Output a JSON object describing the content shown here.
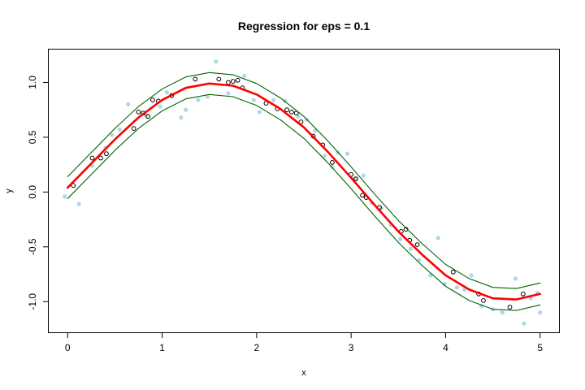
{
  "chart_data": {
    "type": "scatter",
    "title": "Regression for eps = 0.1",
    "xlabel": "x",
    "ylabel": "y",
    "xlim": [
      -0.2,
      5.2
    ],
    "ylim": [
      -1.28,
      1.3
    ],
    "x_ticks": [
      0,
      1,
      2,
      3,
      4,
      5
    ],
    "y_ticks": [
      -1.0,
      -0.5,
      0.0,
      0.5,
      1.0
    ],
    "x_tick_labels": [
      "0",
      "1",
      "2",
      "3",
      "4",
      "5"
    ],
    "y_tick_labels": [
      "-1.0",
      "-0.5",
      "0.0",
      "0.5",
      "1.0"
    ],
    "grid": false,
    "colors": {
      "data_points": "#add8e6",
      "support_vectors": "#000000",
      "fit_line": "#ff0000",
      "tube_lines": "#006400"
    },
    "series": [
      {
        "kind": "points",
        "marker": "filled-circle",
        "color": "#add8e6",
        "points": [
          [
            -0.03,
            -0.04
          ],
          [
            0.12,
            -0.11
          ],
          [
            0.26,
            0.24
          ],
          [
            0.4,
            0.4
          ],
          [
            0.47,
            0.52
          ],
          [
            0.55,
            0.57
          ],
          [
            0.64,
            0.8
          ],
          [
            0.83,
            0.7
          ],
          [
            0.98,
            0.78
          ],
          [
            1.05,
            0.91
          ],
          [
            1.2,
            0.68
          ],
          [
            1.25,
            0.75
          ],
          [
            1.38,
            0.84
          ],
          [
            1.48,
            0.87
          ],
          [
            1.57,
            1.19
          ],
          [
            1.7,
            0.9
          ],
          [
            1.87,
            1.06
          ],
          [
            1.97,
            0.84
          ],
          [
            2.03,
            0.73
          ],
          [
            2.18,
            0.84
          ],
          [
            2.3,
            0.83
          ],
          [
            2.44,
            0.69
          ],
          [
            2.53,
            0.66
          ],
          [
            2.62,
            0.56
          ],
          [
            2.72,
            0.33
          ],
          [
            2.8,
            0.23
          ],
          [
            2.86,
            0.36
          ],
          [
            2.96,
            0.35
          ],
          [
            3.04,
            0.12
          ],
          [
            3.13,
            0.15
          ],
          [
            3.22,
            -0.1
          ],
          [
            3.32,
            -0.15
          ],
          [
            3.42,
            -0.3
          ],
          [
            3.52,
            -0.43
          ],
          [
            3.63,
            -0.52
          ],
          [
            3.72,
            -0.62
          ],
          [
            3.84,
            -0.76
          ],
          [
            3.92,
            -0.42
          ],
          [
            3.99,
            -0.84
          ],
          [
            4.12,
            -0.87
          ],
          [
            4.2,
            -0.89
          ],
          [
            4.27,
            -0.76
          ],
          [
            4.38,
            -1.04
          ],
          [
            4.5,
            -1.07
          ],
          [
            4.6,
            -1.1
          ],
          [
            4.74,
            -0.79
          ],
          [
            4.83,
            -1.2
          ],
          [
            4.9,
            -0.97
          ],
          [
            4.97,
            -0.92
          ],
          [
            5.0,
            -1.1
          ]
        ]
      },
      {
        "kind": "points",
        "marker": "open-circle",
        "color": "#000000",
        "points": [
          [
            0.06,
            0.06
          ],
          [
            0.26,
            0.31
          ],
          [
            0.35,
            0.31
          ],
          [
            0.41,
            0.35
          ],
          [
            0.7,
            0.58
          ],
          [
            0.75,
            0.73
          ],
          [
            0.8,
            0.72
          ],
          [
            0.85,
            0.69
          ],
          [
            0.9,
            0.84
          ],
          [
            0.96,
            0.83
          ],
          [
            1.1,
            0.88
          ],
          [
            1.35,
            1.03
          ],
          [
            1.6,
            1.03
          ],
          [
            1.7,
            1.0
          ],
          [
            1.75,
            1.01
          ],
          [
            1.8,
            1.02
          ],
          [
            1.85,
            0.95
          ],
          [
            2.1,
            0.81
          ],
          [
            2.22,
            0.76
          ],
          [
            2.32,
            0.75
          ],
          [
            2.37,
            0.73
          ],
          [
            2.42,
            0.72
          ],
          [
            2.47,
            0.64
          ],
          [
            2.6,
            0.51
          ],
          [
            2.7,
            0.43
          ],
          [
            2.8,
            0.27
          ],
          [
            3.0,
            0.16
          ],
          [
            3.05,
            0.12
          ],
          [
            3.12,
            -0.03
          ],
          [
            3.16,
            -0.05
          ],
          [
            3.3,
            -0.14
          ],
          [
            3.53,
            -0.36
          ],
          [
            3.58,
            -0.34
          ],
          [
            3.62,
            -0.44
          ],
          [
            3.7,
            -0.48
          ],
          [
            4.08,
            -0.73
          ],
          [
            4.35,
            -0.93
          ],
          [
            4.4,
            -0.99
          ],
          [
            4.68,
            -1.05
          ],
          [
            4.82,
            -0.93
          ]
        ]
      },
      {
        "kind": "line",
        "role": "fit",
        "color": "#ff0000",
        "points": [
          [
            0.0,
            0.04
          ],
          [
            0.25,
            0.26
          ],
          [
            0.5,
            0.48
          ],
          [
            0.75,
            0.68
          ],
          [
            1.0,
            0.84
          ],
          [
            1.25,
            0.95
          ],
          [
            1.5,
            0.99
          ],
          [
            1.75,
            0.97
          ],
          [
            2.0,
            0.89
          ],
          [
            2.25,
            0.76
          ],
          [
            2.5,
            0.59
          ],
          [
            2.75,
            0.37
          ],
          [
            3.0,
            0.13
          ],
          [
            3.25,
            -0.12
          ],
          [
            3.5,
            -0.36
          ],
          [
            3.75,
            -0.57
          ],
          [
            4.0,
            -0.76
          ],
          [
            4.25,
            -0.89
          ],
          [
            4.5,
            -0.97
          ],
          [
            4.75,
            -0.98
          ],
          [
            5.0,
            -0.93
          ]
        ]
      },
      {
        "kind": "line",
        "role": "upper-bound",
        "color": "#006400",
        "points": [
          [
            0.0,
            0.14
          ],
          [
            0.25,
            0.36
          ],
          [
            0.5,
            0.58
          ],
          [
            0.75,
            0.78
          ],
          [
            1.0,
            0.94
          ],
          [
            1.25,
            1.05
          ],
          [
            1.5,
            1.09
          ],
          [
            1.75,
            1.07
          ],
          [
            2.0,
            0.99
          ],
          [
            2.25,
            0.86
          ],
          [
            2.5,
            0.69
          ],
          [
            2.75,
            0.47
          ],
          [
            3.0,
            0.23
          ],
          [
            3.25,
            -0.02
          ],
          [
            3.5,
            -0.26
          ],
          [
            3.75,
            -0.47
          ],
          [
            4.0,
            -0.66
          ],
          [
            4.25,
            -0.79
          ],
          [
            4.5,
            -0.87
          ],
          [
            4.75,
            -0.88
          ],
          [
            5.0,
            -0.83
          ]
        ]
      },
      {
        "kind": "line",
        "role": "lower-bound",
        "color": "#006400",
        "points": [
          [
            0.0,
            -0.06
          ],
          [
            0.25,
            0.16
          ],
          [
            0.5,
            0.38
          ],
          [
            0.75,
            0.58
          ],
          [
            1.0,
            0.74
          ],
          [
            1.25,
            0.85
          ],
          [
            1.5,
            0.89
          ],
          [
            1.75,
            0.87
          ],
          [
            2.0,
            0.79
          ],
          [
            2.25,
            0.66
          ],
          [
            2.5,
            0.49
          ],
          [
            2.75,
            0.27
          ],
          [
            3.0,
            0.03
          ],
          [
            3.25,
            -0.22
          ],
          [
            3.5,
            -0.46
          ],
          [
            3.75,
            -0.67
          ],
          [
            4.0,
            -0.86
          ],
          [
            4.25,
            -0.99
          ],
          [
            4.5,
            -1.07
          ],
          [
            4.75,
            -1.08
          ],
          [
            5.0,
            -1.03
          ]
        ]
      }
    ]
  }
}
